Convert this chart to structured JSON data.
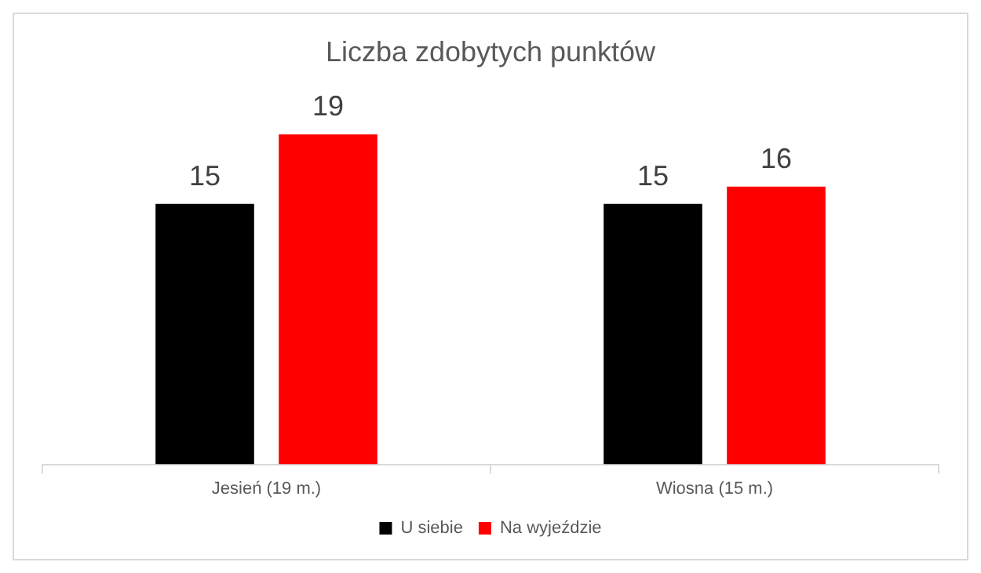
{
  "chart_data": {
    "type": "bar",
    "title": "Liczba zdobytych punktów",
    "categories": [
      "Jesień (19 m.)",
      "Wiosna (15 m.)"
    ],
    "series": [
      {
        "name": "U siebie",
        "color": "#000000",
        "values": [
          15,
          15
        ]
      },
      {
        "name": "Na wyjeździe",
        "color": "#ff0000",
        "values": [
          19,
          16
        ]
      }
    ],
    "data_labels": true,
    "legend": "bottom",
    "grid": false
  }
}
